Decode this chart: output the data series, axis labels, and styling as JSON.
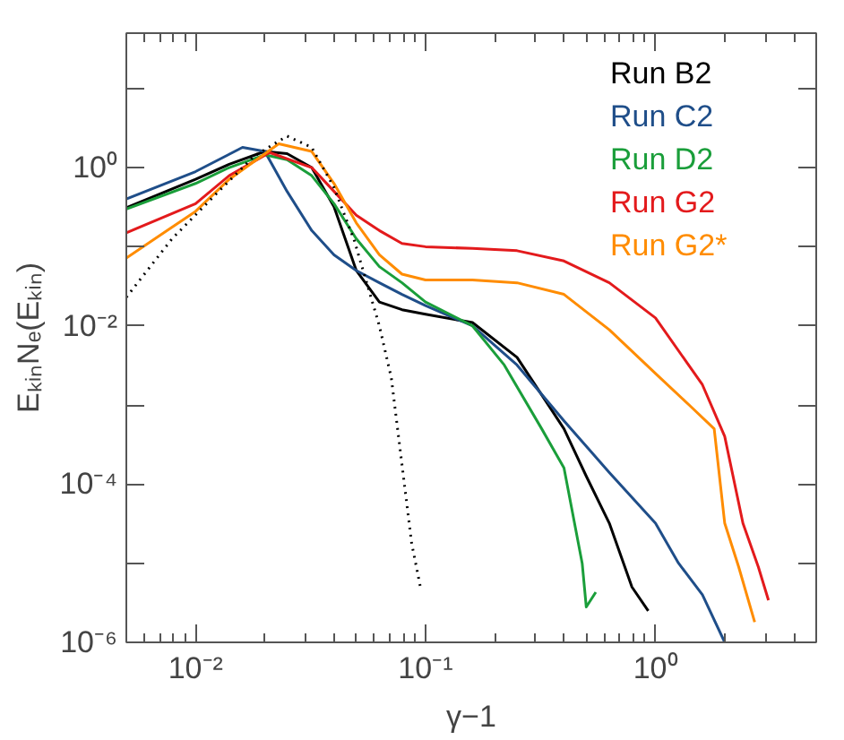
{
  "chart_data": {
    "type": "line",
    "xlabel": "γ−1",
    "ylabel": "EₖᵢₙNₑ(Eₖᵢₙ)",
    "log": "xy",
    "grid": false,
    "legend": "top right",
    "xlim": [
      0.005,
      5
    ],
    "ylim": [
      1e-06,
      50
    ],
    "xticks": [
      {
        "value": 0.01,
        "label": "10⁻²"
      },
      {
        "value": 0.1,
        "label": "10⁻¹"
      },
      {
        "value": 1,
        "label": "10⁰"
      }
    ],
    "yticks": [
      {
        "value": 1e-06,
        "label": "10⁻⁶"
      },
      {
        "value": 1e-05,
        "label": null
      },
      {
        "value": 0.0001,
        "label": "10⁻⁴"
      },
      {
        "value": 0.001,
        "label": null
      },
      {
        "value": 0.01,
        "label": "10⁻²"
      },
      {
        "value": 0.1,
        "label": null
      },
      {
        "value": 1,
        "label": "10⁰"
      },
      {
        "value": 10,
        "label": null
      }
    ],
    "series": [
      {
        "name": "Run B2",
        "color": "#000000",
        "x": [
          0.005,
          0.01,
          0.014,
          0.02,
          0.025,
          0.032,
          0.04,
          0.05,
          0.063,
          0.079,
          0.1,
          0.16,
          0.25,
          0.4,
          0.5,
          0.63,
          0.79,
          0.93
        ],
        "values": [
          0.31,
          0.71,
          1.1,
          1.6,
          1.5,
          1.0,
          0.32,
          0.05,
          0.02,
          0.016,
          0.014,
          0.011,
          0.004,
          0.0005,
          0.000126,
          3.2e-05,
          5e-06,
          2.5e-06
        ]
      },
      {
        "name": "Run C2",
        "color": "#1f4e89",
        "x": [
          0.005,
          0.01,
          0.016,
          0.02,
          0.025,
          0.032,
          0.04,
          0.05,
          0.063,
          0.079,
          0.1,
          0.16,
          0.25,
          0.4,
          0.63,
          1.0,
          1.26,
          1.6,
          2.0
        ],
        "values": [
          0.4,
          0.89,
          1.8,
          1.6,
          0.5,
          0.16,
          0.079,
          0.05,
          0.035,
          0.025,
          0.018,
          0.01,
          0.0032,
          0.00063,
          0.00014,
          3.2e-05,
          1e-05,
          4e-06,
          1e-06
        ]
      },
      {
        "name": "Run D2",
        "color": "#1a9e3a",
        "x": [
          0.005,
          0.01,
          0.014,
          0.02,
          0.025,
          0.032,
          0.04,
          0.05,
          0.063,
          0.079,
          0.1,
          0.16,
          0.22,
          0.32,
          0.4,
          0.48,
          0.5,
          0.55
        ],
        "values": [
          0.3,
          0.63,
          1.0,
          1.45,
          1.26,
          0.79,
          0.35,
          0.126,
          0.056,
          0.035,
          0.02,
          0.01,
          0.0032,
          0.0005,
          0.00016,
          1e-05,
          2.8e-06,
          4.3e-06
        ]
      },
      {
        "name": "Run G2",
        "color": "#e31a1c",
        "x": [
          0.005,
          0.01,
          0.014,
          0.021,
          0.032,
          0.04,
          0.05,
          0.063,
          0.079,
          0.1,
          0.16,
          0.25,
          0.4,
          0.63,
          1.0,
          1.6,
          2.0,
          2.4,
          2.8,
          3.1
        ],
        "values": [
          0.15,
          0.35,
          0.79,
          1.55,
          1.0,
          0.5,
          0.25,
          0.16,
          0.11,
          0.1,
          0.095,
          0.089,
          0.066,
          0.035,
          0.0126,
          0.0018,
          0.0004,
          3.2e-05,
          9e-06,
          3.4e-06
        ]
      },
      {
        "name": "Run G2*",
        "color": "#ff8c00",
        "x": [
          0.005,
          0.01,
          0.014,
          0.023,
          0.032,
          0.04,
          0.05,
          0.063,
          0.079,
          0.1,
          0.16,
          0.25,
          0.4,
          0.63,
          1.0,
          1.4,
          1.8,
          2.0,
          2.3,
          2.7
        ],
        "values": [
          0.072,
          0.28,
          0.71,
          2.0,
          1.6,
          0.63,
          0.2,
          0.079,
          0.045,
          0.038,
          0.038,
          0.035,
          0.025,
          0.0089,
          0.0025,
          0.001,
          0.0005,
          3.2e-05,
          9e-06,
          1.8e-06
        ]
      },
      {
        "color": "#000000",
        "line_style": "dotted",
        "x": [
          0.005,
          0.0079,
          0.0126,
          0.018,
          0.025,
          0.032,
          0.04,
          0.049,
          0.063,
          0.071,
          0.087,
          0.095
        ],
        "values": [
          0.023,
          0.126,
          0.5,
          1.4,
          2.5,
          1.8,
          0.56,
          0.12,
          0.01,
          0.0022,
          1.8e-05,
          5e-06
        ]
      }
    ]
  }
}
